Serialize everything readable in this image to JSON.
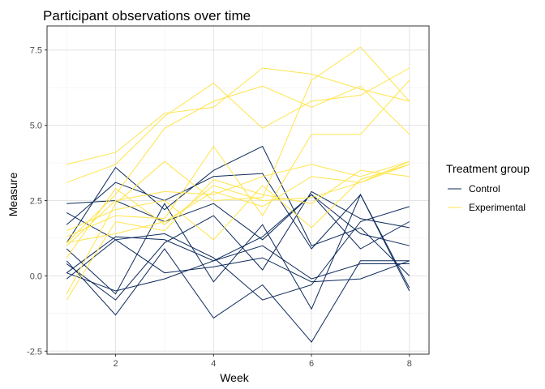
{
  "chart_data": {
    "type": "line",
    "title": "Participant observations over time",
    "xlabel": "Week",
    "ylabel": "Measure",
    "xlim": [
      0.6,
      8.4
    ],
    "ylim": [
      -2.6,
      8.3
    ],
    "x_ticks": [
      2,
      4,
      6,
      8
    ],
    "y_ticks": [
      -2.5,
      0.0,
      2.5,
      5.0,
      7.5
    ],
    "y_tick_labels": [
      "-2.5",
      "0.0",
      "2.5",
      "5.0",
      "7.5"
    ],
    "x": [
      1,
      2,
      3,
      4,
      5,
      6,
      7,
      8
    ],
    "legend": {
      "title": "Treatment group",
      "position": "right",
      "entries": [
        "Control",
        "Experimental"
      ]
    },
    "colors": {
      "Control": "#0d2a5c",
      "Experimental": "#ffe44a"
    },
    "grid": true,
    "series": [
      {
        "group": "Control",
        "values": [
          2.1,
          1.2,
          0.1,
          0.3,
          0.6,
          -0.2,
          -0.1,
          0.5
        ]
      },
      {
        "group": "Control",
        "values": [
          2.4,
          2.5,
          1.8,
          2.4,
          1.2,
          2.7,
          1.4,
          1.0
        ]
      },
      {
        "group": "Control",
        "values": [
          1.1,
          3.6,
          2.2,
          3.5,
          4.3,
          1.0,
          1.6,
          0.0
        ]
      },
      {
        "group": "Control",
        "values": [
          0.1,
          1.3,
          1.2,
          0.5,
          1.0,
          -0.1,
          0.4,
          0.4
        ]
      },
      {
        "group": "Control",
        "values": [
          1.7,
          3.1,
          2.5,
          3.3,
          3.4,
          0.9,
          2.7,
          -0.5
        ]
      },
      {
        "group": "Control",
        "values": [
          0.4,
          -0.8,
          1.1,
          2.0,
          0.2,
          2.8,
          1.9,
          1.6
        ]
      },
      {
        "group": "Control",
        "values": [
          0.5,
          -1.3,
          0.9,
          -1.4,
          -0.3,
          -2.2,
          0.5,
          0.5
        ]
      },
      {
        "group": "Control",
        "values": [
          -0.1,
          1.2,
          1.4,
          0.6,
          -0.8,
          -0.3,
          1.8,
          2.3
        ]
      },
      {
        "group": "Control",
        "values": [
          0.1,
          -0.5,
          -0.1,
          0.5,
          1.3,
          2.7,
          0.9,
          1.8
        ]
      },
      {
        "group": "Control",
        "values": [
          0.9,
          -0.6,
          2.4,
          -0.2,
          1.7,
          -1.1,
          2.7,
          -0.4
        ]
      },
      {
        "group": "Experimental",
        "values": [
          3.7,
          4.1,
          5.4,
          5.6,
          6.9,
          6.7,
          6.2,
          5.8
        ]
      },
      {
        "group": "Experimental",
        "values": [
          3.1,
          3.7,
          5.3,
          6.4,
          4.9,
          5.8,
          6.0,
          6.9
        ]
      },
      {
        "group": "Experimental",
        "values": [
          1.1,
          2.7,
          4.9,
          5.8,
          6.3,
          5.6,
          6.3,
          4.7
        ]
      },
      {
        "group": "Experimental",
        "values": [
          -0.6,
          2.4,
          3.8,
          2.5,
          2.6,
          6.5,
          7.6,
          5.8
        ]
      },
      {
        "group": "Experimental",
        "values": [
          1.3,
          2.0,
          1.9,
          4.3,
          2.0,
          4.7,
          4.7,
          6.5
        ]
      },
      {
        "group": "Experimental",
        "values": [
          1.0,
          2.5,
          2.8,
          2.7,
          3.3,
          3.7,
          3.3,
          3.8
        ]
      },
      {
        "group": "Experimental",
        "values": [
          -0.8,
          1.8,
          1.5,
          3.2,
          2.7,
          2.4,
          3.5,
          3.3
        ]
      },
      {
        "group": "Experimental",
        "values": [
          1.5,
          2.2,
          2.5,
          1.2,
          3.0,
          1.6,
          3.2,
          3.7
        ]
      },
      {
        "group": "Experimental",
        "values": [
          0.6,
          2.9,
          1.7,
          3.0,
          2.5,
          2.6,
          3.1,
          3.8
        ]
      },
      {
        "group": "Experimental",
        "values": [
          1.1,
          1.4,
          1.8,
          2.8,
          2.3,
          3.3,
          3.1,
          3.7
        ]
      }
    ]
  }
}
